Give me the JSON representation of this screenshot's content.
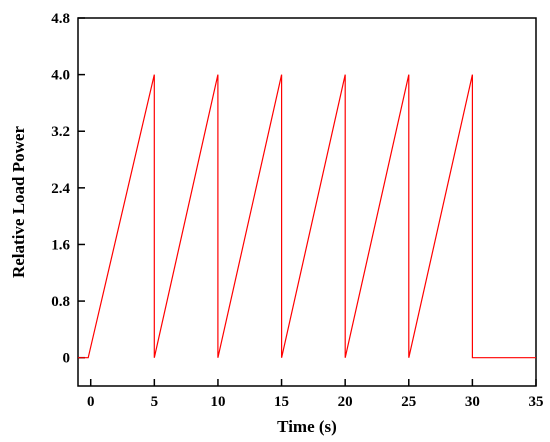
{
  "chart_data": {
    "type": "line",
    "xlabel": "Time (s)",
    "ylabel": "Relative Load Power",
    "xlim": [
      -1,
      35
    ],
    "ylim": [
      -0.4,
      4.8
    ],
    "xticks": [
      0,
      5,
      10,
      15,
      20,
      25,
      30,
      35
    ],
    "yticks": [
      0,
      0.8,
      1.6,
      2.4,
      3.2,
      4.0,
      4.8
    ],
    "ytick_labels": [
      "0",
      "0.8",
      "1.6",
      "2.4",
      "3.2",
      "4.0",
      "4.8"
    ],
    "grid": false,
    "legend": "none",
    "series": [
      {
        "color": "#ff0000",
        "x": [
          -1,
          -0.2,
          5,
          5,
          10,
          10,
          15,
          15,
          20,
          20,
          25,
          25,
          30,
          30,
          35
        ],
        "y": [
          0,
          0,
          4.0,
          0,
          4.0,
          0,
          4.0,
          0,
          4.0,
          0,
          4.0,
          0,
          4.0,
          0,
          0
        ]
      }
    ]
  }
}
